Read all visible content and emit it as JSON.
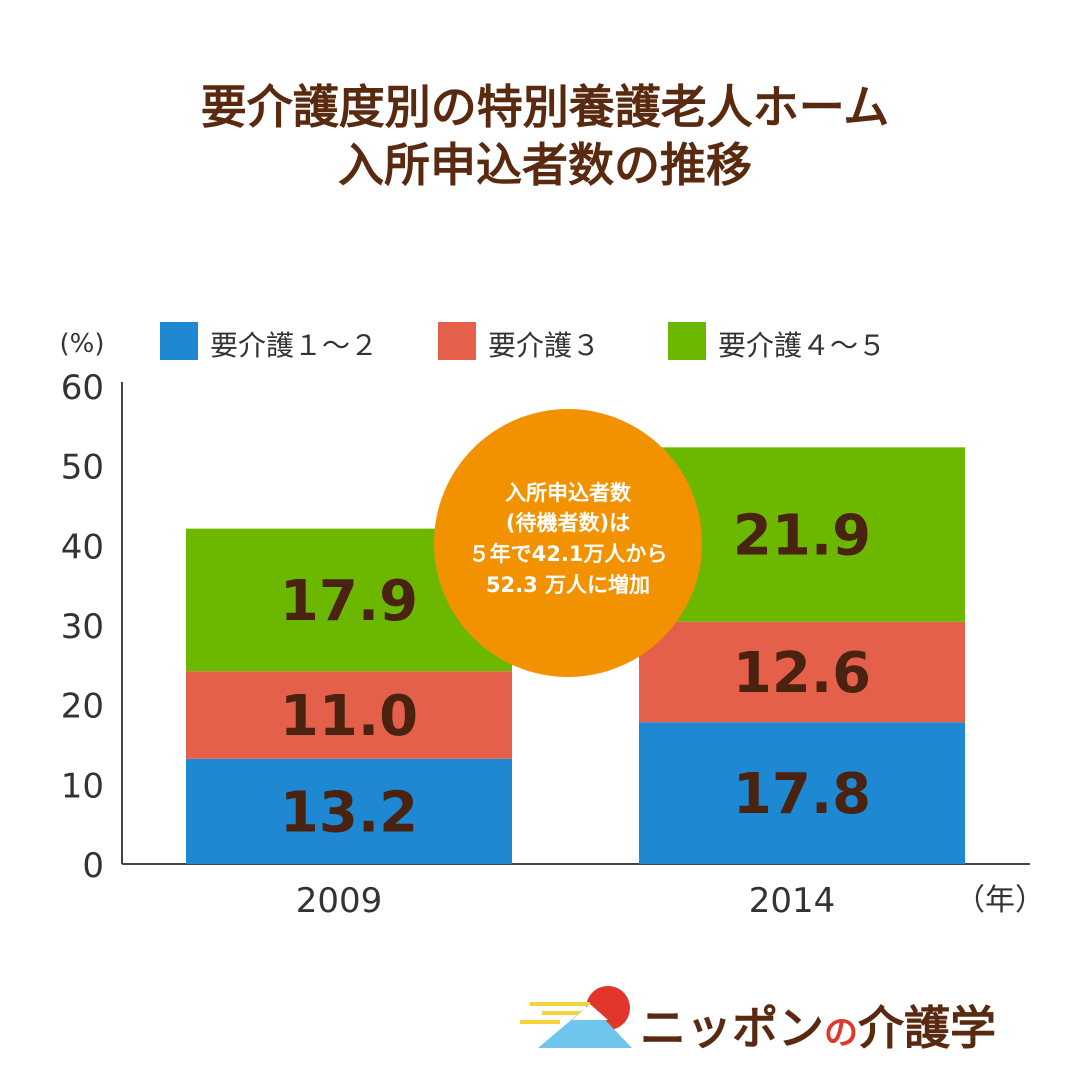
{
  "title": {
    "line1": "要介護度別の特別養護老人ホーム",
    "line2": "入所申込者数の推移"
  },
  "chart_data": {
    "type": "bar",
    "stacked": true,
    "categories": [
      "2009",
      "2014"
    ],
    "series": [
      {
        "name": "要介護１～２",
        "values": [
          13.2,
          17.8
        ],
        "color": "#1e88d2"
      },
      {
        "name": "要介護３",
        "values": [
          11.0,
          12.6
        ],
        "color": "#e5604a"
      },
      {
        "name": "要介護４～５",
        "values": [
          17.9,
          21.9
        ],
        "color": "#6cb800"
      }
    ],
    "ylabel": "(%)",
    "xlabel": "（年）",
    "ylim": [
      0,
      60
    ],
    "yticks": [
      0,
      10,
      20,
      30,
      40,
      50,
      60
    ],
    "grid": false,
    "legend": "top",
    "value_label_color": "#4a2210",
    "annotation": {
      "lines": [
        "入所申込者数",
        "(待機者数)は",
        "５年で42.1万人から",
        "52.3 万人に増加"
      ],
      "color": "#f39200",
      "text_color": "#ffffff"
    }
  },
  "logo": {
    "part1": "ニッポン",
    "part2": "の",
    "part3": "介護学"
  }
}
